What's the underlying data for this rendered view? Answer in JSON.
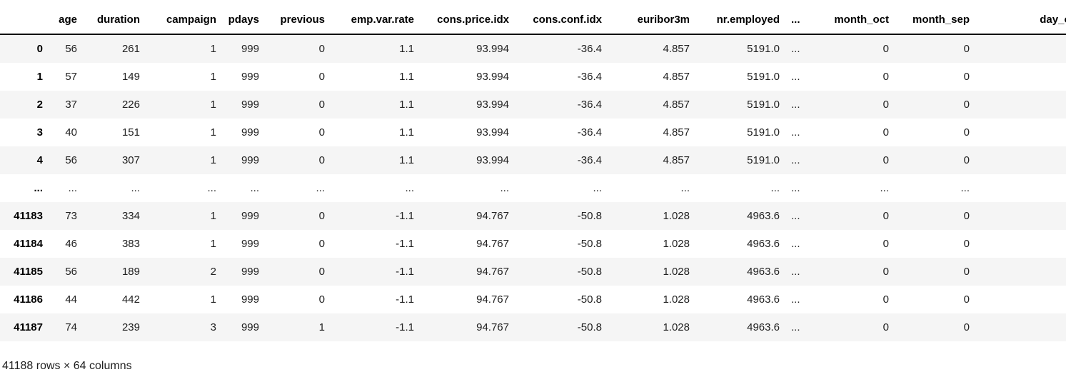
{
  "table": {
    "index_header": "",
    "columns": [
      "age",
      "duration",
      "campaign",
      "pdays",
      "previous",
      "emp.var.rate",
      "cons.price.idx",
      "cons.conf.idx",
      "euribor3m",
      "nr.employed",
      "...",
      "month_oct",
      "month_sep",
      "day_of_week_"
    ],
    "rows": [
      {
        "index": "0",
        "cells": [
          "56",
          "261",
          "1",
          "999",
          "0",
          "1.1",
          "93.994",
          "-36.4",
          "4.857",
          "5191.0",
          "...",
          "0",
          "0",
          ""
        ]
      },
      {
        "index": "1",
        "cells": [
          "57",
          "149",
          "1",
          "999",
          "0",
          "1.1",
          "93.994",
          "-36.4",
          "4.857",
          "5191.0",
          "...",
          "0",
          "0",
          ""
        ]
      },
      {
        "index": "2",
        "cells": [
          "37",
          "226",
          "1",
          "999",
          "0",
          "1.1",
          "93.994",
          "-36.4",
          "4.857",
          "5191.0",
          "...",
          "0",
          "0",
          ""
        ]
      },
      {
        "index": "3",
        "cells": [
          "40",
          "151",
          "1",
          "999",
          "0",
          "1.1",
          "93.994",
          "-36.4",
          "4.857",
          "5191.0",
          "...",
          "0",
          "0",
          ""
        ]
      },
      {
        "index": "4",
        "cells": [
          "56",
          "307",
          "1",
          "999",
          "0",
          "1.1",
          "93.994",
          "-36.4",
          "4.857",
          "5191.0",
          "...",
          "0",
          "0",
          ""
        ]
      },
      {
        "index": "...",
        "cells": [
          "...",
          "...",
          "...",
          "...",
          "...",
          "...",
          "...",
          "...",
          "...",
          "...",
          "...",
          "...",
          "...",
          ""
        ]
      },
      {
        "index": "41183",
        "cells": [
          "73",
          "334",
          "1",
          "999",
          "0",
          "-1.1",
          "94.767",
          "-50.8",
          "1.028",
          "4963.6",
          "...",
          "0",
          "0",
          ""
        ]
      },
      {
        "index": "41184",
        "cells": [
          "46",
          "383",
          "1",
          "999",
          "0",
          "-1.1",
          "94.767",
          "-50.8",
          "1.028",
          "4963.6",
          "...",
          "0",
          "0",
          ""
        ]
      },
      {
        "index": "41185",
        "cells": [
          "56",
          "189",
          "2",
          "999",
          "0",
          "-1.1",
          "94.767",
          "-50.8",
          "1.028",
          "4963.6",
          "...",
          "0",
          "0",
          ""
        ]
      },
      {
        "index": "41186",
        "cells": [
          "44",
          "442",
          "1",
          "999",
          "0",
          "-1.1",
          "94.767",
          "-50.8",
          "1.028",
          "4963.6",
          "...",
          "0",
          "0",
          ""
        ]
      },
      {
        "index": "41187",
        "cells": [
          "74",
          "239",
          "3",
          "999",
          "1",
          "-1.1",
          "94.767",
          "-50.8",
          "1.028",
          "4963.6",
          "...",
          "0",
          "0",
          ""
        ]
      }
    ],
    "footer": "41188 rows × 64 columns"
  },
  "colors": {
    "stripe": "#f5f5f5",
    "header_border": "#000000",
    "text": "#212121"
  }
}
